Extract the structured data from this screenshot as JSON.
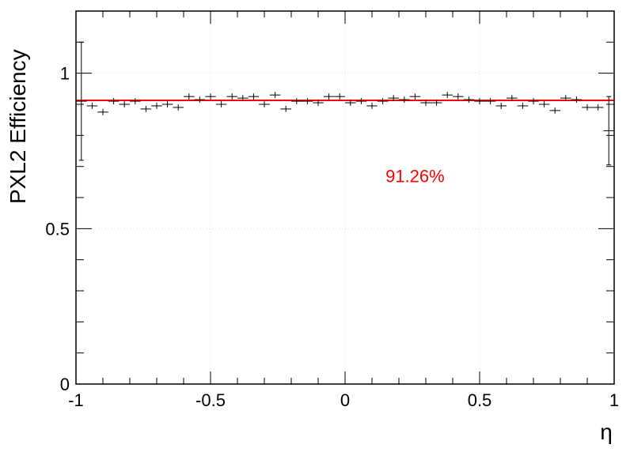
{
  "chart_data": {
    "type": "scatter",
    "title": "",
    "xlabel": "η",
    "ylabel": "PXL2 Efficiency",
    "xlim": [
      -1,
      1
    ],
    "ylim": [
      0,
      1.2
    ],
    "xticks": [
      -1,
      -0.5,
      0,
      0.5,
      1
    ],
    "xtick_labels": [
      "-1",
      "-0.5",
      "0",
      "0.5",
      "1"
    ],
    "yticks": [
      0,
      0.5,
      1
    ],
    "ytick_labels": [
      "0",
      "0.5",
      "1"
    ],
    "grid": true,
    "legend": "none",
    "annotation": {
      "text": "91.26%",
      "x": 0.26,
      "y": 0.67,
      "color": "#ff0000"
    },
    "fit_line": {
      "y": 0.9126,
      "color": "#ff0000"
    },
    "marker_color": "#000000",
    "bin_half_width": 0.02,
    "points": [
      {
        "x": -0.98,
        "y": 0.91,
        "err": 0.19
      },
      {
        "x": -0.94,
        "y": 0.895,
        "err": 0.01
      },
      {
        "x": -0.9,
        "y": 0.875,
        "err": 0.01
      },
      {
        "x": -0.86,
        "y": 0.91,
        "err": 0.01
      },
      {
        "x": -0.82,
        "y": 0.9,
        "err": 0.01
      },
      {
        "x": -0.78,
        "y": 0.91,
        "err": 0.01
      },
      {
        "x": -0.74,
        "y": 0.885,
        "err": 0.01
      },
      {
        "x": -0.7,
        "y": 0.895,
        "err": 0.01
      },
      {
        "x": -0.66,
        "y": 0.9,
        "err": 0.01
      },
      {
        "x": -0.62,
        "y": 0.89,
        "err": 0.01
      },
      {
        "x": -0.58,
        "y": 0.925,
        "err": 0.01
      },
      {
        "x": -0.54,
        "y": 0.915,
        "err": 0.01
      },
      {
        "x": -0.5,
        "y": 0.925,
        "err": 0.01
      },
      {
        "x": -0.46,
        "y": 0.9,
        "err": 0.01
      },
      {
        "x": -0.42,
        "y": 0.925,
        "err": 0.01
      },
      {
        "x": -0.38,
        "y": 0.92,
        "err": 0.01
      },
      {
        "x": -0.34,
        "y": 0.925,
        "err": 0.01
      },
      {
        "x": -0.3,
        "y": 0.9,
        "err": 0.01
      },
      {
        "x": -0.26,
        "y": 0.93,
        "err": 0.01
      },
      {
        "x": -0.22,
        "y": 0.885,
        "err": 0.01
      },
      {
        "x": -0.18,
        "y": 0.91,
        "err": 0.01
      },
      {
        "x": -0.14,
        "y": 0.91,
        "err": 0.01
      },
      {
        "x": -0.1,
        "y": 0.905,
        "err": 0.01
      },
      {
        "x": -0.06,
        "y": 0.925,
        "err": 0.01
      },
      {
        "x": -0.02,
        "y": 0.925,
        "err": 0.01
      },
      {
        "x": 0.02,
        "y": 0.905,
        "err": 0.01
      },
      {
        "x": 0.06,
        "y": 0.91,
        "err": 0.01
      },
      {
        "x": 0.1,
        "y": 0.895,
        "err": 0.01
      },
      {
        "x": 0.14,
        "y": 0.91,
        "err": 0.01
      },
      {
        "x": 0.18,
        "y": 0.92,
        "err": 0.01
      },
      {
        "x": 0.22,
        "y": 0.915,
        "err": 0.01
      },
      {
        "x": 0.26,
        "y": 0.925,
        "err": 0.01
      },
      {
        "x": 0.3,
        "y": 0.905,
        "err": 0.01
      },
      {
        "x": 0.34,
        "y": 0.905,
        "err": 0.01
      },
      {
        "x": 0.38,
        "y": 0.93,
        "err": 0.01
      },
      {
        "x": 0.42,
        "y": 0.925,
        "err": 0.01
      },
      {
        "x": 0.46,
        "y": 0.915,
        "err": 0.01
      },
      {
        "x": 0.5,
        "y": 0.91,
        "err": 0.01
      },
      {
        "x": 0.54,
        "y": 0.91,
        "err": 0.01
      },
      {
        "x": 0.58,
        "y": 0.895,
        "err": 0.01
      },
      {
        "x": 0.62,
        "y": 0.92,
        "err": 0.01
      },
      {
        "x": 0.66,
        "y": 0.895,
        "err": 0.01
      },
      {
        "x": 0.7,
        "y": 0.91,
        "err": 0.01
      },
      {
        "x": 0.74,
        "y": 0.9,
        "err": 0.01
      },
      {
        "x": 0.78,
        "y": 0.88,
        "err": 0.01
      },
      {
        "x": 0.82,
        "y": 0.92,
        "err": 0.01
      },
      {
        "x": 0.86,
        "y": 0.915,
        "err": 0.01
      },
      {
        "x": 0.9,
        "y": 0.89,
        "err": 0.01
      },
      {
        "x": 0.94,
        "y": 0.89,
        "err": 0.01
      },
      {
        "x": 0.98,
        "y": 0.815,
        "err": 0.11
      }
    ]
  }
}
